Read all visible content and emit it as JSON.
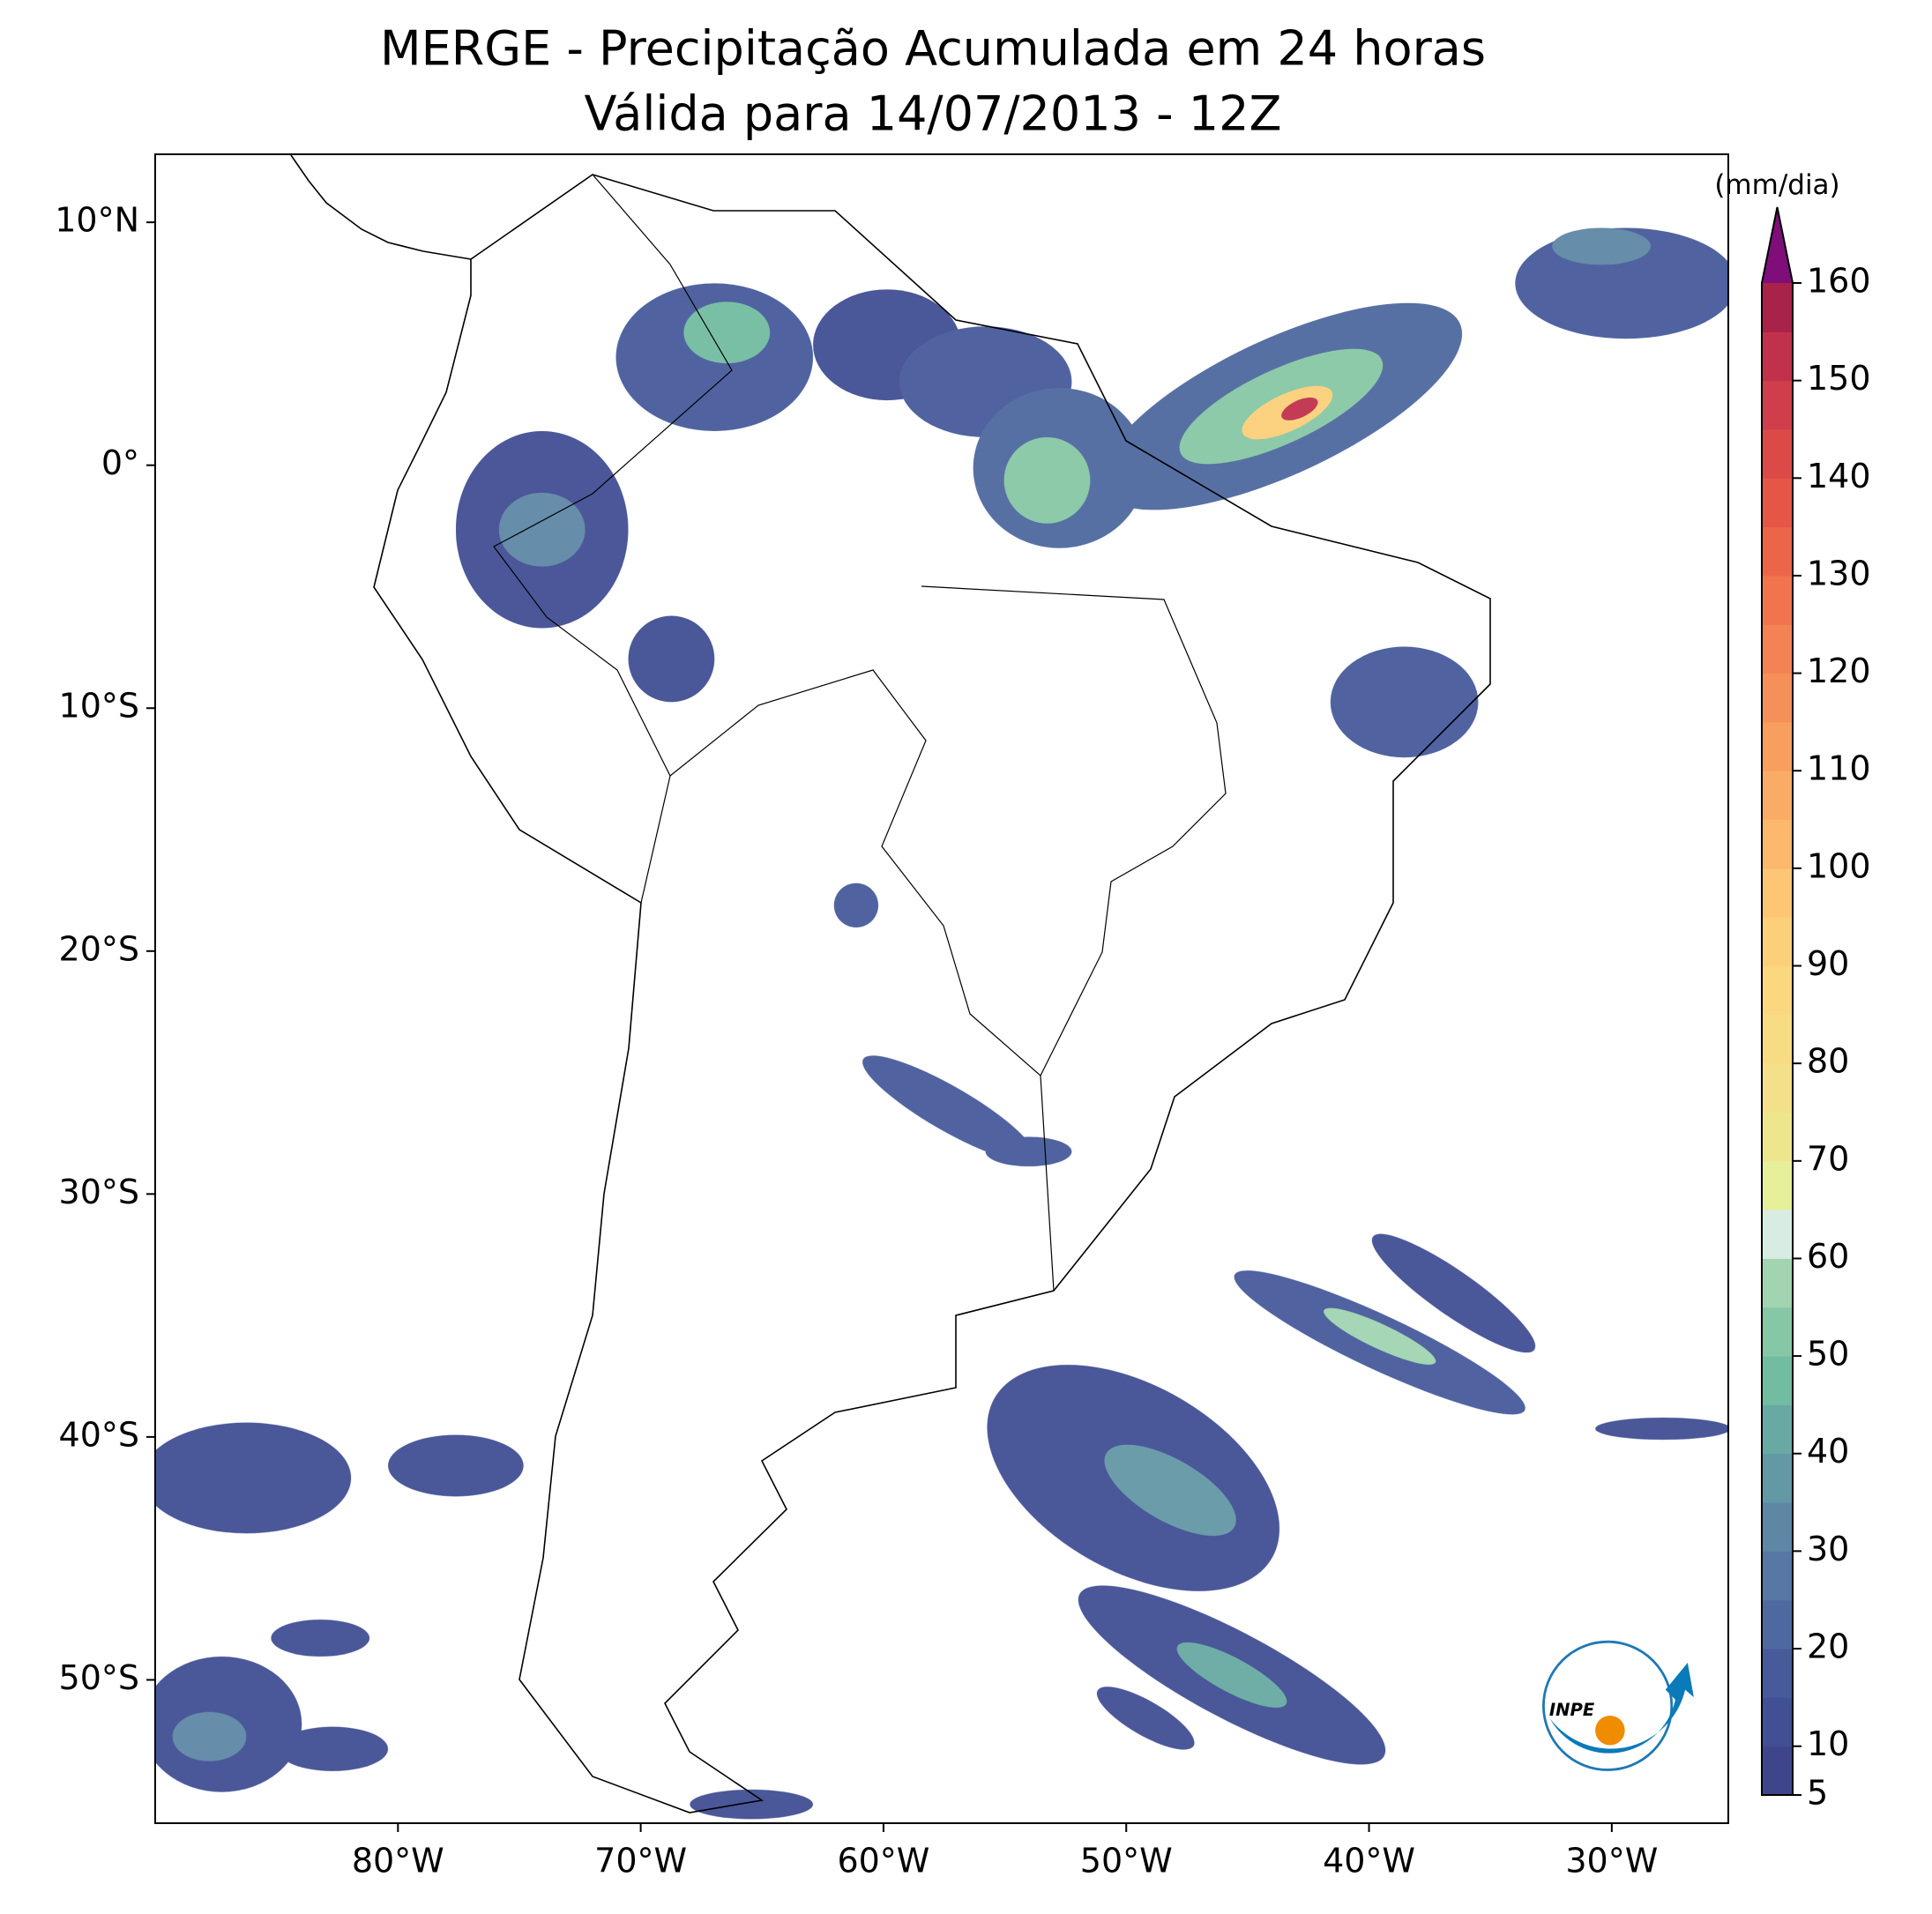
{
  "title": [
    "MERGE - Precipitação Acumulada em 24 horas",
    "Válida para 14/07/2013 - 12Z"
  ],
  "map": {
    "lon_range": [
      -90,
      -25.2
    ],
    "lat_range": [
      -55.9,
      12.8
    ],
    "lon_ticks": [
      {
        "value": -80,
        "label": "80°W"
      },
      {
        "value": -70,
        "label": "70°W"
      },
      {
        "value": -60,
        "label": "60°W"
      },
      {
        "value": -50,
        "label": "50°W"
      },
      {
        "value": -40,
        "label": "40°W"
      },
      {
        "value": -30,
        "label": "30°W"
      }
    ],
    "lat_ticks": [
      {
        "value": 10,
        "label": "10°N"
      },
      {
        "value": 0,
        "label": "0°"
      },
      {
        "value": -10,
        "label": "10°S"
      },
      {
        "value": -20,
        "label": "20°S"
      },
      {
        "value": -30,
        "label": "30°S"
      },
      {
        "value": -40,
        "label": "40°S"
      },
      {
        "value": -50,
        "label": "50°S"
      }
    ]
  },
  "colorbar": {
    "label": "(mm/dia)",
    "range": [
      5,
      160
    ],
    "ticks": [
      5,
      10,
      20,
      30,
      40,
      50,
      60,
      70,
      80,
      90,
      100,
      110,
      120,
      130,
      140,
      150,
      160
    ],
    "colors": [
      "#3e458a",
      "#414f94",
      "#475b9b",
      "#4e69a0",
      "#5777a4",
      "#5e87a6",
      "#6398a5",
      "#68aaa3",
      "#72bca2",
      "#86c8a6",
      "#a1d4b1",
      "#d8ece4",
      "#e6ef9a",
      "#eee68c",
      "#f4e08a",
      "#f8dc84",
      "#fbd880",
      "#fcd07a",
      "#fdc574",
      "#fcb86c",
      "#faac66",
      "#f89f60",
      "#f6905a",
      "#f48254",
      "#f1744f",
      "#ec6549",
      "#e55647",
      "#dc4a48",
      "#d13e4b",
      "#c1314c",
      "#a8224a"
    ],
    "extend_color": "#7f0d7a"
  },
  "logo": "INPE"
}
